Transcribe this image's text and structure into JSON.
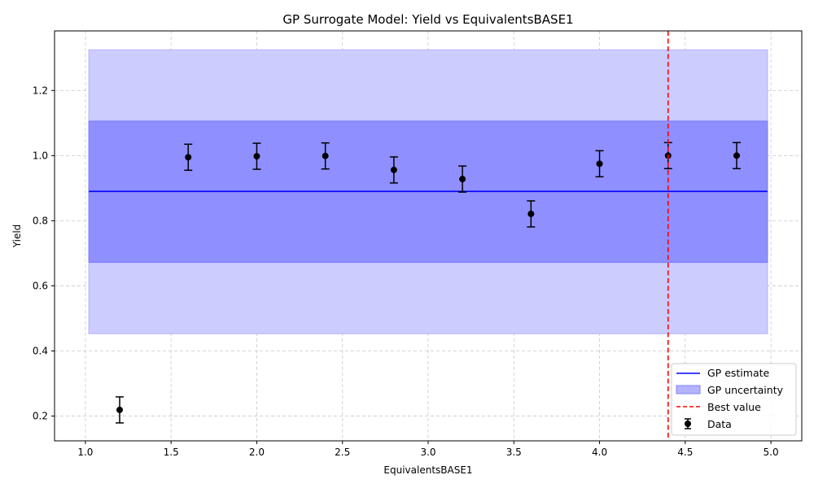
{
  "chart_data": {
    "type": "scatter",
    "title": "GP Surrogate Model: Yield vs EquivalentsBASE1",
    "xlabel": "EquivalentsBASE1",
    "ylabel": "Yield",
    "xlim": [
      0.82,
      5.18
    ],
    "ylim": [
      0.124,
      1.383
    ],
    "xticks": [
      1.0,
      1.5,
      2.0,
      2.5,
      3.0,
      3.5,
      4.0,
      4.5,
      5.0
    ],
    "xtick_labels": [
      "1.0",
      "1.5",
      "2.0",
      "2.5",
      "3.0",
      "3.5",
      "4.0",
      "4.5",
      "5.0"
    ],
    "yticks": [
      0.2,
      0.4,
      0.6,
      0.8,
      1.0,
      1.2
    ],
    "ytick_labels": [
      "0.2",
      "0.4",
      "0.6",
      "0.8",
      "1.0",
      "1.2"
    ],
    "grid": true,
    "legend_position": "lower-right",
    "gp_estimate": {
      "name": "GP estimate",
      "x": [
        1.02,
        4.98
      ],
      "y": [
        0.89,
        0.89
      ]
    },
    "gp_uncertainty": {
      "name": "GP uncertainty",
      "x": [
        1.02,
        4.98
      ],
      "inner_band": [
        0.672,
        1.106
      ],
      "outer_band": [
        0.453,
        1.325
      ]
    },
    "best_value": {
      "name": "Best value",
      "x": 4.4
    },
    "data": {
      "name": "Data",
      "x": [
        1.2,
        1.6,
        2.0,
        2.4,
        2.8,
        3.2,
        3.6,
        4.0,
        4.4,
        4.8
      ],
      "y": [
        0.219,
        0.995,
        0.998,
        0.999,
        0.956,
        0.928,
        0.821,
        0.975,
        1.0,
        1.0
      ],
      "yerr": 0.04
    },
    "colors": {
      "gp_line": "#0000ff",
      "band_outer": "#ccccff",
      "band_inner": "#8f8fff",
      "best_line": "#ff0000",
      "points": "#000000",
      "grid": "#c8c8c8"
    }
  }
}
